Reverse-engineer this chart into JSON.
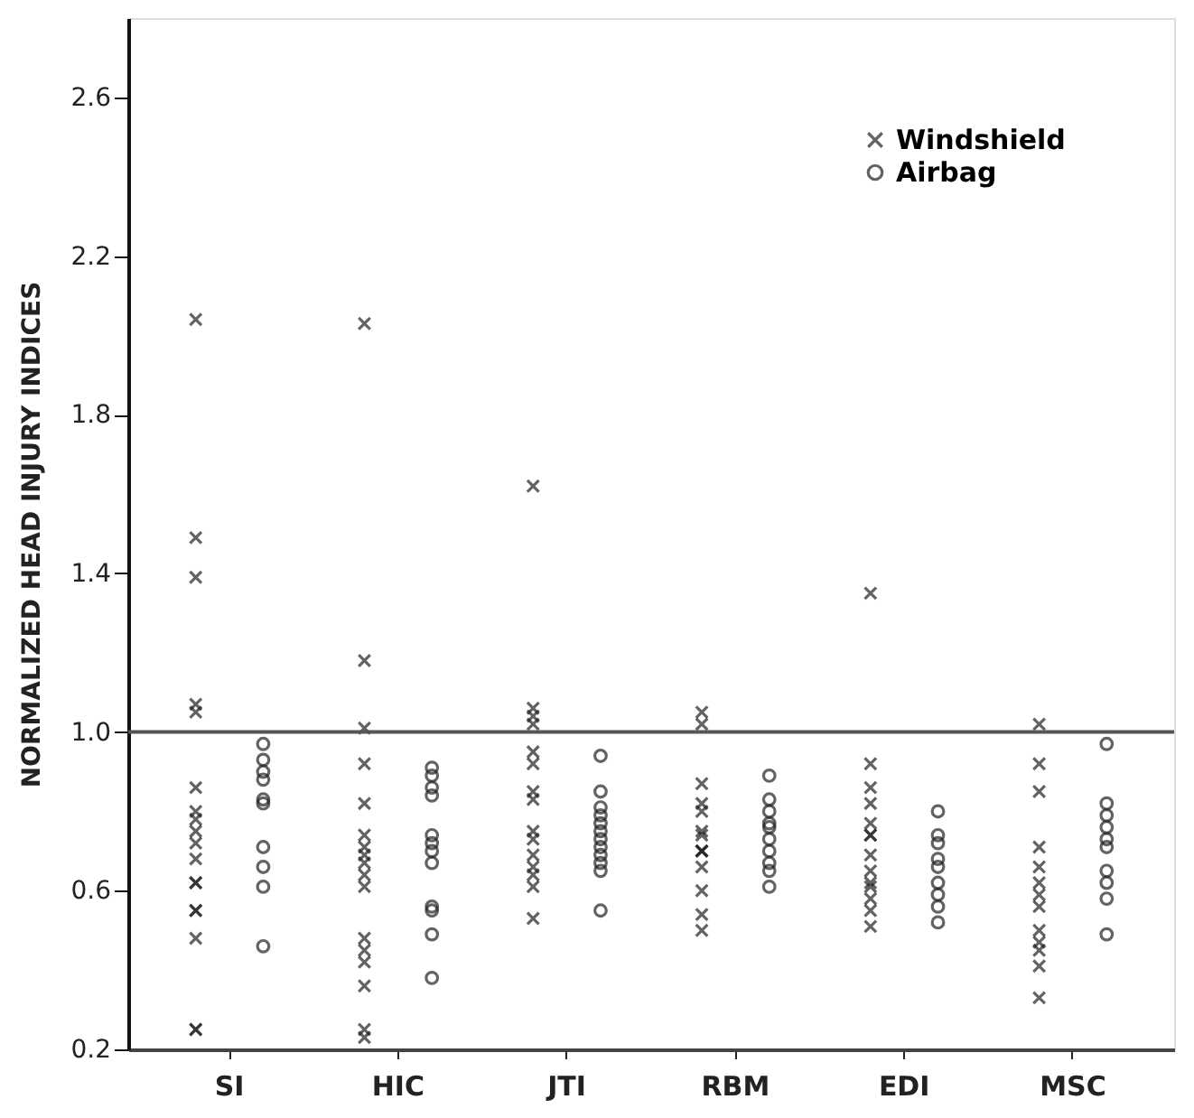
{
  "chart_data": {
    "type": "scatter",
    "ylabel": "NORMALIZED HEAD INJURY INDICES",
    "categories": [
      "SI",
      "HIC",
      "JTI",
      "RBM",
      "EDI",
      "MSC"
    ],
    "ylim": [
      0.2,
      2.8
    ],
    "yticks": [
      {
        "value": 0.2,
        "label": "0.2"
      },
      {
        "value": 0.6,
        "label": "0.6"
      },
      {
        "value": 1,
        "label": "1.0"
      },
      {
        "value": 1.4,
        "label": "1.4"
      },
      {
        "value": 1.8,
        "label": "1.8"
      },
      {
        "value": 2.2,
        "label": "2.2"
      },
      {
        "value": 2.6,
        "label": "2.6"
      }
    ],
    "grid": false,
    "legend": "top right",
    "ref_lines": [
      {
        "axis": "y",
        "value": 1.0,
        "color": "#555555"
      }
    ],
    "series": [
      {
        "name": "Windshield",
        "color": "#222222",
        "marker": "cross",
        "x": [
          "SI",
          "SI",
          "SI",
          "SI",
          "SI",
          "SI",
          "SI",
          "SI",
          "SI",
          "SI",
          "SI",
          "SI",
          "SI",
          "SI",
          "SI",
          "SI",
          "SI",
          "SI",
          "HIC",
          "HIC",
          "HIC",
          "HIC",
          "HIC",
          "HIC",
          "HIC",
          "HIC",
          "HIC",
          "HIC",
          "HIC",
          "HIC",
          "HIC",
          "HIC",
          "HIC",
          "HIC",
          "HIC",
          "JTI",
          "JTI",
          "JTI",
          "JTI",
          "JTI",
          "JTI",
          "JTI",
          "JTI",
          "JTI",
          "JTI",
          "JTI",
          "JTI",
          "JTI",
          "JTI",
          "JTI",
          "RBM",
          "RBM",
          "RBM",
          "RBM",
          "RBM",
          "RBM",
          "RBM",
          "RBM",
          "RBM",
          "RBM",
          "RBM",
          "RBM",
          "RBM",
          "RBM",
          "EDI",
          "EDI",
          "EDI",
          "EDI",
          "EDI",
          "EDI",
          "EDI",
          "EDI",
          "EDI",
          "EDI",
          "EDI",
          "EDI",
          "EDI",
          "EDI",
          "MSC",
          "MSC",
          "MSC",
          "MSC",
          "MSC",
          "MSC",
          "MSC",
          "MSC",
          "MSC",
          "MSC",
          "MSC",
          "MSC",
          "MSC"
        ],
        "values": [
          2.04,
          1.49,
          1.39,
          1.07,
          1.05,
          0.86,
          0.8,
          0.78,
          0.75,
          0.72,
          0.68,
          0.62,
          0.62,
          0.55,
          0.55,
          0.48,
          0.25,
          0.25,
          2.03,
          1.18,
          1.01,
          0.92,
          0.82,
          0.74,
          0.71,
          0.69,
          0.67,
          0.64,
          0.61,
          0.48,
          0.45,
          0.42,
          0.36,
          0.25,
          0.23,
          1.62,
          1.06,
          1.04,
          1.02,
          0.95,
          0.92,
          0.85,
          0.83,
          0.75,
          0.73,
          0.69,
          0.66,
          0.64,
          0.61,
          0.53,
          1.05,
          1.02,
          0.87,
          0.82,
          0.8,
          0.75,
          0.74,
          0.7,
          0.7,
          0.7,
          0.66,
          0.6,
          0.54,
          0.5,
          1.35,
          0.92,
          0.86,
          0.82,
          0.77,
          0.74,
          0.74,
          0.69,
          0.65,
          0.62,
          0.61,
          0.58,
          0.55,
          0.51,
          1.02,
          0.92,
          0.85,
          0.71,
          0.66,
          0.62,
          0.59,
          0.56,
          0.5,
          0.47,
          0.45,
          0.41,
          0.33
        ]
      },
      {
        "name": "Airbag",
        "color": "#222222",
        "marker": "circle",
        "x": [
          "SI",
          "SI",
          "SI",
          "SI",
          "SI",
          "SI",
          "SI",
          "SI",
          "SI",
          "SI",
          "HIC",
          "HIC",
          "HIC",
          "HIC",
          "HIC",
          "HIC",
          "HIC",
          "HIC",
          "HIC",
          "HIC",
          "HIC",
          "HIC",
          "JTI",
          "JTI",
          "JTI",
          "JTI",
          "JTI",
          "JTI",
          "JTI",
          "JTI",
          "JTI",
          "JTI",
          "JTI",
          "JTI",
          "RBM",
          "RBM",
          "RBM",
          "RBM",
          "RBM",
          "RBM",
          "RBM",
          "RBM",
          "RBM",
          "RBM",
          "EDI",
          "EDI",
          "EDI",
          "EDI",
          "EDI",
          "EDI",
          "EDI",
          "EDI",
          "EDI",
          "MSC",
          "MSC",
          "MSC",
          "MSC",
          "MSC",
          "MSC",
          "MSC",
          "MSC",
          "MSC",
          "MSC"
        ],
        "values": [
          0.97,
          0.93,
          0.9,
          0.88,
          0.83,
          0.82,
          0.71,
          0.66,
          0.61,
          0.46,
          0.91,
          0.89,
          0.86,
          0.84,
          0.74,
          0.72,
          0.7,
          0.67,
          0.56,
          0.55,
          0.49,
          0.38,
          0.94,
          0.85,
          0.81,
          0.79,
          0.77,
          0.75,
          0.73,
          0.71,
          0.69,
          0.67,
          0.65,
          0.55,
          0.89,
          0.83,
          0.8,
          0.77,
          0.76,
          0.73,
          0.7,
          0.67,
          0.65,
          0.61,
          0.8,
          0.74,
          0.72,
          0.68,
          0.66,
          0.62,
          0.59,
          0.56,
          0.52,
          0.97,
          0.82,
          0.79,
          0.76,
          0.73,
          0.71,
          0.65,
          0.62,
          0.58,
          0.49
        ]
      }
    ]
  }
}
